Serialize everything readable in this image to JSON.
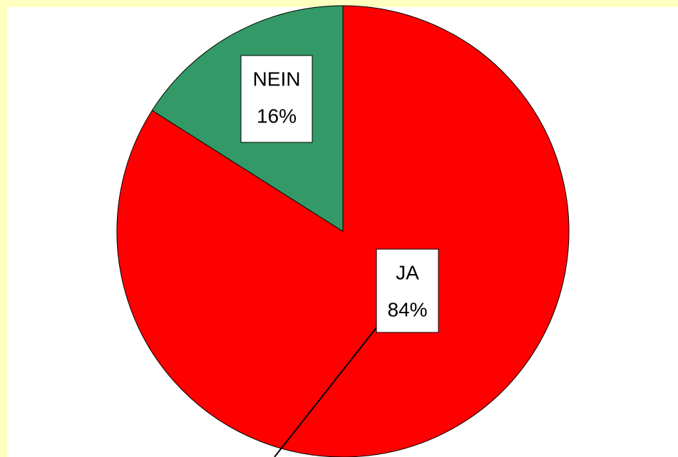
{
  "chart_data": {
    "type": "pie",
    "categories": [
      "JA",
      "NEIN"
    ],
    "values": [
      84,
      16
    ],
    "value_labels": [
      "84%",
      "16%"
    ],
    "colors": [
      "#ff0000",
      "#339966"
    ]
  }
}
